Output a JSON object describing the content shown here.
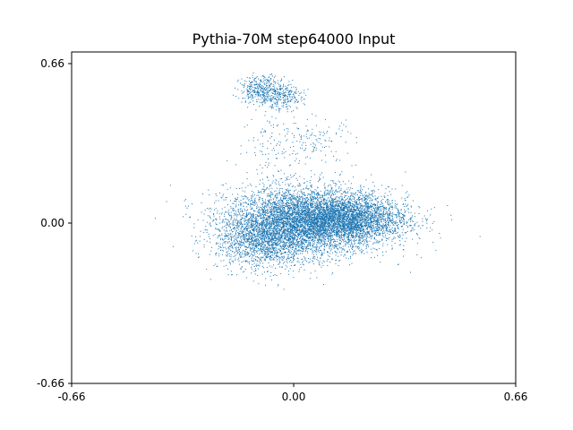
{
  "chart_data": {
    "type": "scatter",
    "title": "Pythia-70M step64000 Input",
    "xlabel": "",
    "ylabel": "",
    "xlim": [
      -0.66,
      0.66
    ],
    "ylim": [
      -0.66,
      0.66
    ],
    "xticks": [
      "-0.66",
      "0.00",
      "0.66"
    ],
    "yticks": [
      "-0.66",
      "0.00",
      "0.66"
    ],
    "grid": false,
    "point_color": "#1f77b4",
    "series": [
      {
        "values_description_clusters": [
          {
            "cx": 0.04,
            "cy": 0.01,
            "sx": 0.12,
            "sy": 0.07,
            "count": 5200
          },
          {
            "cx": 0.16,
            "cy": 0.02,
            "sx": 0.09,
            "sy": 0.045,
            "count": 2200
          },
          {
            "cx": -0.09,
            "cy": -0.07,
            "sx": 0.07,
            "sy": 0.06,
            "count": 1400
          },
          {
            "cx": -0.09,
            "cy": 0.55,
            "sx": 0.035,
            "sy": 0.03,
            "count": 420
          },
          {
            "cx": -0.03,
            "cy": 0.52,
            "sx": 0.03,
            "sy": 0.025,
            "count": 200
          },
          {
            "cx": 0.06,
            "cy": 0.34,
            "sx": 0.06,
            "sy": 0.05,
            "count": 140
          },
          {
            "cx": -0.07,
            "cy": 0.33,
            "sx": 0.04,
            "sy": 0.08,
            "count": 90
          }
        ]
      }
    ]
  }
}
